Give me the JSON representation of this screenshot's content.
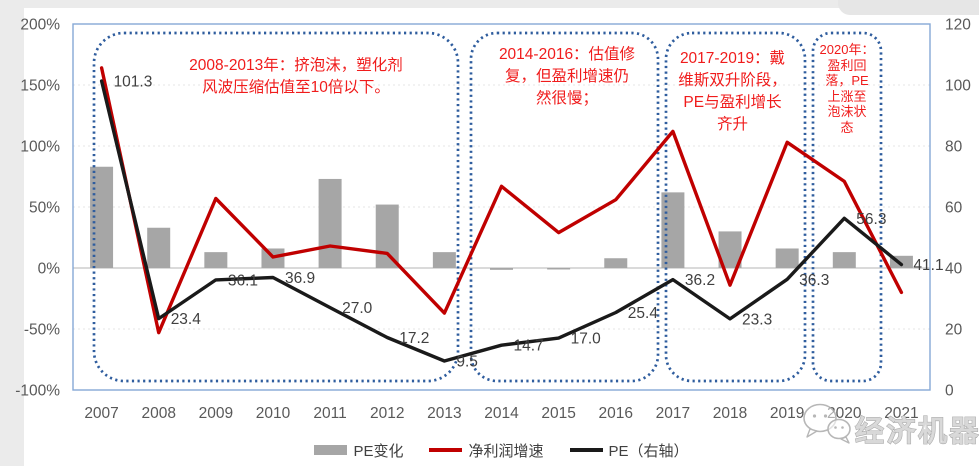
{
  "chart_data": {
    "type": "combo-bar-line",
    "title": "",
    "categories": [
      "2007",
      "2008",
      "2009",
      "2010",
      "2011",
      "2012",
      "2013",
      "2014",
      "2015",
      "2016",
      "2017",
      "2018",
      "2019",
      "2020",
      "2021"
    ],
    "series": [
      {
        "name": "PE变化",
        "type": "bar",
        "axis": "left",
        "unit": "%",
        "color": "#a6a6a6",
        "values": [
          83,
          33,
          13,
          16,
          73,
          52,
          13,
          -1.5,
          -1.2,
          8,
          62,
          30,
          16,
          13,
          10
        ]
      },
      {
        "name": "净利润增速",
        "type": "line",
        "axis": "left",
        "unit": "%",
        "color": "#c00000",
        "values": [
          164,
          -53,
          57,
          9,
          18,
          12,
          -37,
          67,
          29,
          56,
          112,
          -14,
          103,
          71,
          -20
        ]
      },
      {
        "name": "PE（右轴）",
        "type": "line",
        "axis": "right",
        "unit": "x",
        "color": "#1a1a1a",
        "data_labels": true,
        "values": [
          101.3,
          23.4,
          36.1,
          36.9,
          27.0,
          17.2,
          9.5,
          14.7,
          17.0,
          25.4,
          36.2,
          23.3,
          36.3,
          56.3,
          41.1
        ]
      }
    ],
    "left_axis": {
      "min": -100,
      "max": 200,
      "tick_step": 50,
      "tick_labels": [
        "200%",
        "150%",
        "100%",
        "50%",
        "0%",
        "-50%",
        "-100%"
      ]
    },
    "right_axis": {
      "min": 0,
      "max": 120,
      "tick_step": 20,
      "tick_labels": [
        "120",
        "100",
        "80",
        "60",
        "40",
        "20",
        "0"
      ]
    },
    "legend_position": "bottom",
    "grid": true
  },
  "annotations": [
    {
      "text": "2008-2013年：挤泡沫，塑化剂\n风波压缩估值至10倍以下。"
    },
    {
      "text": "2014-2016：估值修\n复，但盈利增速仍\n然很慢；"
    },
    {
      "text": "2017-2019：戴\n维斯双升阶段，\nPE与盈利增长\n齐升"
    },
    {
      "text": "2020年：\n盈利回\n落，PE\n上涨至\n泡沫状\n态"
    }
  ],
  "watermark": {
    "text": "经济机器"
  },
  "colors": {
    "bar": "#a6a6a6",
    "profit_line": "#c00000",
    "pe_line": "#1a1a1a",
    "annotation_text": "#f01c1c",
    "annotation_box": "#2f5d9e",
    "plot_border": "#85a9d6",
    "gridline": "#e4e4e4",
    "zero_line": "#c4c4c4",
    "axis_text": "#595959",
    "data_label": "#404040"
  }
}
